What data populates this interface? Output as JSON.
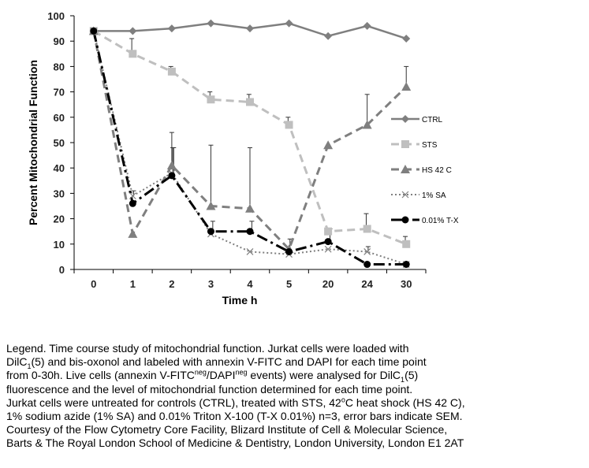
{
  "chart_data": {
    "type": "line",
    "title": "",
    "xlabel": "Time h",
    "ylabel": "Percent Mitochondrial Function",
    "categories": [
      "0",
      "1",
      "2",
      "3",
      "4",
      "5",
      "20",
      "24",
      "30"
    ],
    "ylim": [
      0,
      100
    ],
    "yticks": [
      "0",
      "10",
      "20",
      "30",
      "40",
      "50",
      "60",
      "70",
      "80",
      "90",
      "100"
    ],
    "grid": false,
    "legend_position": "right",
    "series": [
      {
        "name": "CTRL",
        "color": "#7f7f7f",
        "marker": "diamond",
        "dash": "solid",
        "values": [
          94,
          94,
          95,
          97,
          95,
          97,
          92,
          96,
          91
        ],
        "errors": [
          0,
          0,
          0,
          0,
          0,
          0,
          0,
          0,
          0
        ]
      },
      {
        "name": "STS",
        "color": "#bfbfbf",
        "marker": "square",
        "dash": "dashed",
        "values": [
          94,
          85,
          78,
          67,
          66,
          57,
          15,
          16,
          10
        ],
        "errors": [
          0,
          6,
          2,
          3,
          3,
          3,
          1,
          6,
          3
        ]
      },
      {
        "name": "HS 42 C",
        "color": "#7f7f7f",
        "marker": "triangle",
        "dash": "dashed",
        "values": [
          94,
          14,
          41,
          25,
          24,
          8,
          49,
          57,
          72
        ],
        "errors": [
          0,
          0,
          13,
          24,
          24,
          0,
          0,
          12,
          8
        ]
      },
      {
        "name": "1% SA",
        "color": "#7f7f7f",
        "marker": "x",
        "dash": "dotted",
        "values": [
          94,
          29,
          38,
          14,
          7,
          6,
          8,
          7,
          2
        ],
        "errors": [
          0,
          2,
          10,
          0,
          0,
          6,
          0,
          2,
          0
        ]
      },
      {
        "name": "0.01% T-X",
        "color": "#000000",
        "marker": "circle",
        "dash": "dashdot",
        "values": [
          94,
          26,
          37,
          15,
          15,
          7,
          11,
          2,
          2
        ],
        "errors": [
          0,
          0,
          11,
          4,
          4,
          0,
          5,
          0,
          0
        ]
      }
    ]
  },
  "caption": {
    "lines": [
      [
        {
          "t": "Legend. Time course study of mitochondrial function. Jurkat cells were loaded with"
        }
      ],
      [
        {
          "t": " DilC"
        },
        {
          "t": "1",
          "s": "sub"
        },
        {
          "t": "(5) and bis-oxonol and labeled with annexin V-FITC and DAPI for each time point"
        }
      ],
      [
        {
          "t": "from 0-30h. Live cells (annexin V-FITC"
        },
        {
          "t": "neg",
          "s": "sup"
        },
        {
          "t": "/DAPI"
        },
        {
          "t": "neg",
          "s": "sup"
        },
        {
          "t": " events) were analysed for DilC"
        },
        {
          "t": "1",
          "s": "sub"
        },
        {
          "t": "(5)"
        }
      ],
      [
        {
          "t": "fluorescence and the level of mitochondrial function determined for each time point."
        }
      ],
      [
        {
          "t": "Jurkat cells were untreated for controls (CTRL), treated with STS, 42"
        },
        {
          "t": "o",
          "s": "sup"
        },
        {
          "t": "C heat shock (HS 42 C),"
        }
      ],
      [
        {
          "t": "1% sodium azide (1% SA) and 0.01% Triton X-100 (T-X 0.01%) n=3, error bars indicate SEM."
        }
      ],
      [
        {
          "t": "Courtesy of the Flow Cytometry Core Facility, Blizard Institute of Cell & Molecular Science,"
        }
      ],
      [
        {
          "t": "Barts & The Royal London School of Medicine & Dentistry, London University, London E1 2AT"
        }
      ]
    ]
  }
}
